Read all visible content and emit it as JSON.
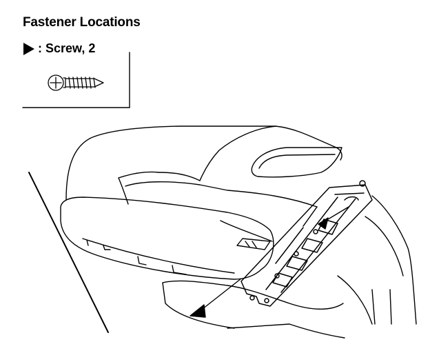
{
  "title": "Fastener Locations",
  "legend": {
    "symbol": "triangle-marker-icon",
    "label": ": Screw, 2"
  },
  "icons": {
    "screw": "screw-icon"
  }
}
